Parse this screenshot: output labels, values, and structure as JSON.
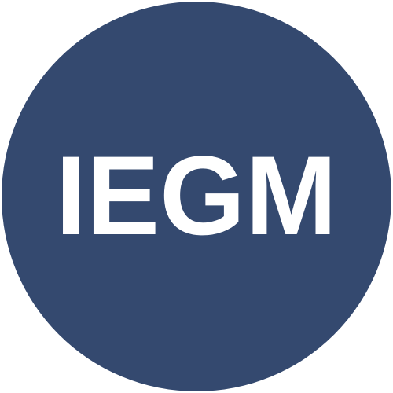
{
  "logo": {
    "text": "IEGM",
    "background_color": "#34496f",
    "text_color": "#ffffff"
  }
}
